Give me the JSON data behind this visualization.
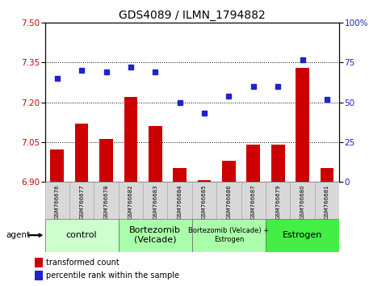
{
  "title": "GDS4089 / ILMN_1794882",
  "samples": [
    "GSM766676",
    "GSM766677",
    "GSM766678",
    "GSM766682",
    "GSM766683",
    "GSM766684",
    "GSM766685",
    "GSM766686",
    "GSM766687",
    "GSM766679",
    "GSM766680",
    "GSM766681"
  ],
  "bar_values": [
    7.02,
    7.12,
    7.06,
    7.22,
    7.11,
    6.95,
    6.905,
    6.98,
    7.04,
    7.04,
    7.33,
    6.95
  ],
  "dot_values": [
    65,
    70,
    69,
    72,
    69,
    50,
    43,
    54,
    60,
    60,
    77,
    52
  ],
  "ylim_left": [
    6.9,
    7.5
  ],
  "ylim_right": [
    0,
    100
  ],
  "yticks_left": [
    6.9,
    7.05,
    7.2,
    7.35,
    7.5
  ],
  "yticks_right": [
    0,
    25,
    50,
    75,
    100
  ],
  "bar_color": "#cc0000",
  "dot_color": "#2222cc",
  "bar_baseline": 6.9,
  "groups": [
    {
      "label": "control",
      "start": 0,
      "end": 3,
      "color": "#ccffcc",
      "fontsize": 8
    },
    {
      "label": "Bortezomib\n(Velcade)",
      "start": 3,
      "end": 6,
      "color": "#aaffaa",
      "fontsize": 8
    },
    {
      "label": "Bortezomib (Velcade) +\nEstrogen",
      "start": 6,
      "end": 9,
      "color": "#aaffaa",
      "fontsize": 6
    },
    {
      "label": "Estrogen",
      "start": 9,
      "end": 12,
      "color": "#44ee44",
      "fontsize": 8
    }
  ],
  "agent_label": "agent",
  "legend_bar_label": "transformed count",
  "legend_dot_label": "percentile rank within the sample",
  "grid_color": "#000000",
  "bg_color": "#ffffff",
  "plot_bg": "#ffffff",
  "tick_label_color_left": "#cc0000",
  "tick_label_color_right": "#2222cc",
  "fig_width": 4.83,
  "fig_height": 3.54,
  "dpi": 100
}
